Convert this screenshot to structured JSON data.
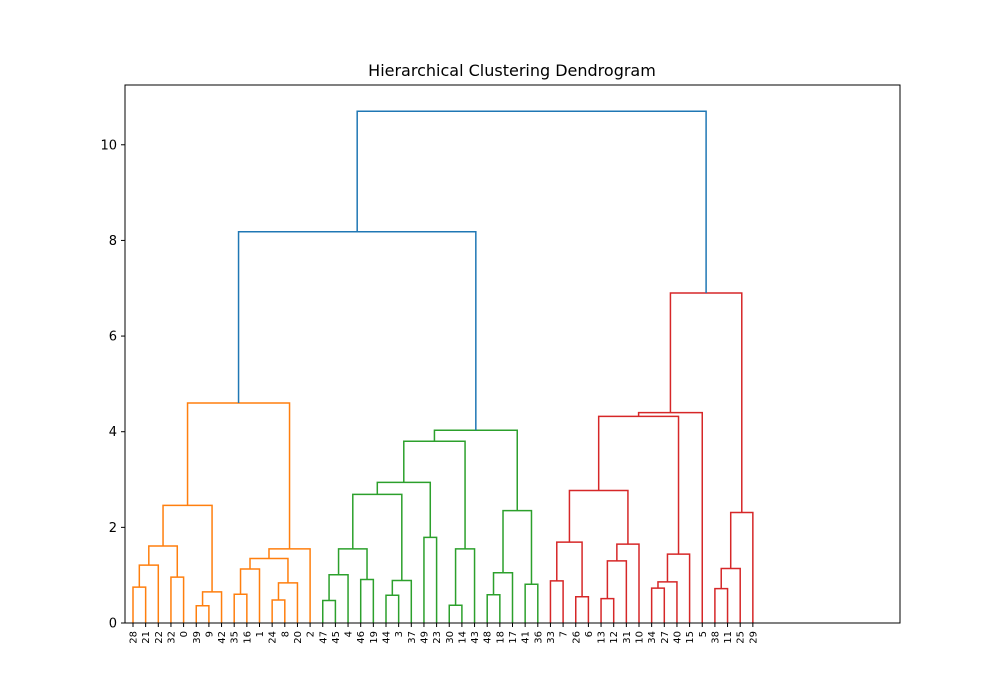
{
  "chart_data": {
    "type": "dendrogram",
    "title": "Hierarchical Clustering Dendrogram",
    "xlabel": "",
    "ylabel": "",
    "ylim": [
      0,
      11.25
    ],
    "yticks": [
      0,
      2,
      4,
      6,
      8,
      10
    ],
    "leaves": [
      28,
      21,
      22,
      32,
      0,
      39,
      9,
      42,
      35,
      16,
      1,
      24,
      8,
      20,
      2,
      47,
      45,
      4,
      46,
      19,
      44,
      3,
      37,
      49,
      23,
      30,
      14,
      43,
      48,
      18,
      17,
      41,
      36,
      33,
      7,
      26,
      6,
      13,
      12,
      31,
      10,
      34,
      27,
      40,
      15,
      5,
      38,
      11,
      25,
      29
    ],
    "colors": {
      "orange": "#ff7f0e",
      "green": "#2ca02c",
      "red": "#d62728",
      "blue": "#1f77b4"
    },
    "merges": [
      {
        "left": "L:28",
        "right": "L:21",
        "height": 0.75,
        "color": "orange"
      },
      {
        "left": "M0",
        "right": "L:22",
        "height": 1.21,
        "color": "orange"
      },
      {
        "left": "L:32",
        "right": "L:0",
        "height": 0.96,
        "color": "orange"
      },
      {
        "left": "M1",
        "right": "M2",
        "height": 1.61,
        "color": "orange"
      },
      {
        "left": "L:39",
        "right": "L:9",
        "height": 0.36,
        "color": "orange"
      },
      {
        "left": "M4",
        "right": "L:42",
        "height": 0.65,
        "color": "orange"
      },
      {
        "left": "M3",
        "right": "M5",
        "height": 2.46,
        "color": "orange"
      },
      {
        "left": "L:35",
        "right": "L:16",
        "height": 0.6,
        "color": "orange"
      },
      {
        "left": "M7",
        "right": "L:1",
        "height": 1.13,
        "color": "orange"
      },
      {
        "left": "L:24",
        "right": "L:8",
        "height": 0.48,
        "color": "orange"
      },
      {
        "left": "M9",
        "right": "L:20",
        "height": 0.84,
        "color": "orange"
      },
      {
        "left": "M8",
        "right": "M10",
        "height": 1.35,
        "color": "orange"
      },
      {
        "left": "M11",
        "right": "L:2",
        "height": 1.55,
        "color": "orange"
      },
      {
        "left": "M6",
        "right": "M12",
        "height": 4.6,
        "color": "orange"
      },
      {
        "left": "L:47",
        "right": "L:45",
        "height": 0.47,
        "color": "green"
      },
      {
        "left": "M14",
        "right": "L:4",
        "height": 1.01,
        "color": "green"
      },
      {
        "left": "L:46",
        "right": "L:19",
        "height": 0.91,
        "color": "green"
      },
      {
        "left": "M15",
        "right": "M16",
        "height": 1.55,
        "color": "green"
      },
      {
        "left": "L:44",
        "right": "L:3",
        "height": 0.58,
        "color": "green"
      },
      {
        "left": "M18",
        "right": "L:37",
        "height": 0.89,
        "color": "green"
      },
      {
        "left": "M17",
        "right": "M19",
        "height": 2.69,
        "color": "green"
      },
      {
        "left": "L:49",
        "right": "L:23",
        "height": 1.79,
        "color": "green"
      },
      {
        "left": "M20",
        "right": "M21",
        "height": 2.94,
        "color": "green"
      },
      {
        "left": "L:30",
        "right": "L:14",
        "height": 0.37,
        "color": "green"
      },
      {
        "left": "M23",
        "right": "L:43",
        "height": 1.55,
        "color": "green"
      },
      {
        "left": "M22",
        "right": "M24",
        "height": 3.8,
        "color": "green"
      },
      {
        "left": "L:48",
        "right": "L:18",
        "height": 0.59,
        "color": "green"
      },
      {
        "left": "M26",
        "right": "L:17",
        "height": 1.05,
        "color": "green"
      },
      {
        "left": "L:41",
        "right": "L:36",
        "height": 0.81,
        "color": "green"
      },
      {
        "left": "M27",
        "right": "M28",
        "height": 2.35,
        "color": "green"
      },
      {
        "left": "M25",
        "right": "M29",
        "height": 4.03,
        "color": "green"
      },
      {
        "left": "M13",
        "right": "M30",
        "height": 8.18,
        "color": "blue"
      },
      {
        "left": "L:33",
        "right": "L:7",
        "height": 0.88,
        "color": "red"
      },
      {
        "left": "L:26",
        "right": "L:6",
        "height": 0.55,
        "color": "red"
      },
      {
        "left": "M32",
        "right": "M33",
        "height": 1.69,
        "color": "red"
      },
      {
        "left": "L:13",
        "right": "L:12",
        "height": 0.51,
        "color": "red"
      },
      {
        "left": "M35",
        "right": "L:31",
        "height": 1.3,
        "color": "red"
      },
      {
        "left": "M36",
        "right": "L:10",
        "height": 1.65,
        "color": "red"
      },
      {
        "left": "M34",
        "right": "M37",
        "height": 2.77,
        "color": "red"
      },
      {
        "left": "L:34",
        "right": "L:27",
        "height": 0.73,
        "color": "red"
      },
      {
        "left": "M39",
        "right": "L:40",
        "height": 0.86,
        "color": "red"
      },
      {
        "left": "M40",
        "right": "L:15",
        "height": 1.44,
        "color": "red"
      },
      {
        "left": "M38",
        "right": "M41",
        "height": 4.32,
        "color": "red"
      },
      {
        "left": "M42",
        "right": "L:5",
        "height": 4.4,
        "color": "red"
      },
      {
        "left": "L:38",
        "right": "L:11",
        "height": 0.72,
        "color": "red"
      },
      {
        "left": "M44",
        "right": "L:25",
        "height": 1.14,
        "color": "red"
      },
      {
        "left": "M45",
        "right": "L:29",
        "height": 2.31,
        "color": "red"
      },
      {
        "left": "M43",
        "right": "M46",
        "height": 6.9,
        "color": "red"
      },
      {
        "left": "M31",
        "right": "M47",
        "height": 10.7,
        "color": "blue"
      }
    ]
  }
}
